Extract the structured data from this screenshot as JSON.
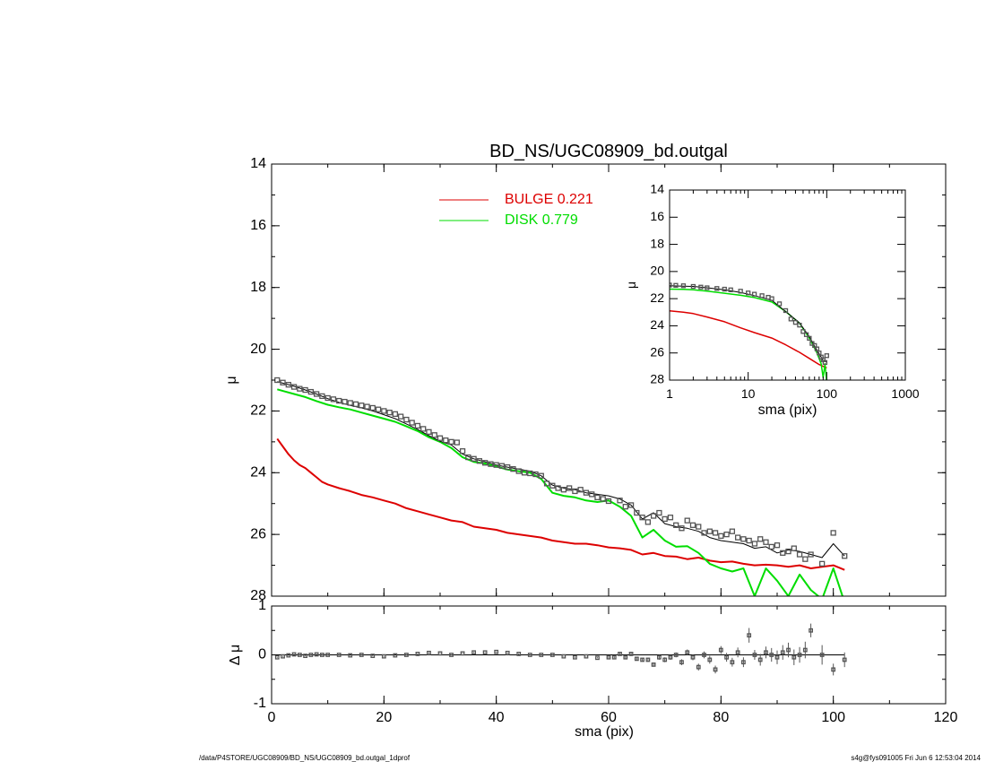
{
  "colors": {
    "bulge": "#dd0000",
    "disk": "#00dd00",
    "model": "#000000",
    "data": "#555555",
    "frame": "#000000"
  },
  "footer": {
    "left": "/data/P4STORE/UGC08909/BD_NS/UGC08909_bd.outgal_1dprof",
    "right": "s4g@fys091005  Fri Jun  6 12:53:04 2014"
  },
  "chart_data": [
    {
      "panel": "main",
      "type": "line",
      "title": "BD_NS/UGC08909_bd.outgal",
      "xlabel": "sma (pix)",
      "ylabel": "μ",
      "xlim": [
        0,
        120
      ],
      "ylim": [
        28,
        14
      ],
      "x_ticks": [
        "0",
        "20",
        "40",
        "60",
        "80",
        "100",
        "120"
      ],
      "y_ticks": [
        "14",
        "16",
        "18",
        "20",
        "22",
        "24",
        "26",
        "28"
      ],
      "legend": [
        {
          "label": "BULGE  0.221",
          "color": "#dd0000"
        },
        {
          "label": "DISK  0.779",
          "color": "#00dd00"
        }
      ],
      "series": [
        {
          "name": "BULGE",
          "color": "#dd0000",
          "x": [
            1,
            2,
            3,
            4,
            5,
            6,
            7,
            8,
            9,
            10,
            12,
            14,
            16,
            18,
            20,
            22,
            24,
            26,
            28,
            30,
            32,
            34,
            36,
            38,
            40,
            42,
            44,
            46,
            48,
            50,
            52,
            54,
            56,
            58,
            60,
            62,
            64,
            66,
            68,
            70,
            72,
            74,
            76,
            78,
            80,
            82,
            84,
            86,
            88,
            90,
            92,
            94,
            96,
            98,
            100,
            102
          ],
          "y": [
            22.9,
            23.15,
            23.4,
            23.6,
            23.75,
            23.85,
            24.0,
            24.15,
            24.3,
            24.38,
            24.5,
            24.6,
            24.72,
            24.8,
            24.9,
            25.0,
            25.15,
            25.25,
            25.35,
            25.45,
            25.55,
            25.6,
            25.75,
            25.8,
            25.85,
            25.95,
            26.0,
            26.05,
            26.1,
            26.2,
            26.25,
            26.3,
            26.3,
            26.35,
            26.42,
            26.45,
            26.5,
            26.65,
            26.6,
            26.7,
            26.72,
            26.8,
            26.75,
            26.85,
            26.9,
            26.88,
            26.95,
            27.0,
            26.98,
            27.0,
            27.05,
            27.0,
            27.1,
            27.05,
            27.0,
            27.15
          ]
        },
        {
          "name": "DISK",
          "color": "#00dd00",
          "x": [
            1,
            2,
            4,
            6,
            8,
            10,
            12,
            14,
            16,
            18,
            20,
            22,
            24,
            26,
            28,
            30,
            32,
            34,
            36,
            38,
            40,
            42,
            44,
            46,
            48,
            50,
            52,
            54,
            56,
            58,
            60,
            62,
            64,
            66,
            68,
            70,
            72,
            74,
            76,
            78,
            80,
            82,
            84,
            86,
            88,
            90,
            92,
            94,
            96,
            98,
            100,
            102
          ],
          "y": [
            21.3,
            21.35,
            21.45,
            21.55,
            21.68,
            21.8,
            21.88,
            21.95,
            22.05,
            22.15,
            22.25,
            22.35,
            22.5,
            22.65,
            22.85,
            23.0,
            23.2,
            23.5,
            23.65,
            23.7,
            23.8,
            23.9,
            23.95,
            24.0,
            24.2,
            24.65,
            24.75,
            24.8,
            24.9,
            24.95,
            24.9,
            25.1,
            25.4,
            26.1,
            25.85,
            26.2,
            26.4,
            26.38,
            26.6,
            26.95,
            27.1,
            27.2,
            27.1,
            28.0,
            27.1,
            27.5,
            28.0,
            27.3,
            27.8,
            28.1,
            27.1,
            28.2
          ]
        },
        {
          "name": "model",
          "color": "#000000",
          "x": [
            1,
            2,
            4,
            6,
            8,
            10,
            12,
            14,
            16,
            18,
            20,
            22,
            24,
            26,
            28,
            30,
            32,
            34,
            36,
            38,
            40,
            42,
            44,
            46,
            48,
            50,
            52,
            54,
            56,
            58,
            60,
            62,
            64,
            66,
            68,
            70,
            72,
            74,
            76,
            78,
            80,
            82,
            84,
            86,
            88,
            90,
            92,
            94,
            96,
            98,
            100,
            102
          ],
          "y": [
            21.05,
            21.1,
            21.2,
            21.32,
            21.45,
            21.6,
            21.72,
            21.82,
            21.9,
            22.0,
            22.12,
            22.25,
            22.42,
            22.6,
            22.8,
            22.98,
            23.1,
            23.4,
            23.55,
            23.65,
            23.75,
            23.82,
            23.88,
            23.95,
            24.1,
            24.4,
            24.5,
            24.55,
            24.65,
            24.7,
            24.75,
            24.85,
            25.05,
            25.5,
            25.3,
            25.65,
            25.75,
            25.8,
            25.9,
            26.1,
            26.2,
            26.25,
            26.3,
            26.45,
            26.4,
            26.6,
            26.5,
            26.55,
            26.65,
            26.75,
            26.3,
            26.7
          ]
        },
        {
          "name": "data",
          "color": "#555555",
          "marker": "square",
          "x": [
            1,
            2,
            3,
            4,
            5,
            6,
            7,
            8,
            9,
            10,
            11,
            12,
            13,
            14,
            15,
            16,
            17,
            18,
            19,
            20,
            21,
            22,
            23,
            24,
            25,
            26,
            27,
            28,
            29,
            30,
            31,
            32,
            33,
            34,
            35,
            36,
            37,
            38,
            39,
            40,
            41,
            42,
            43,
            44,
            45,
            46,
            47,
            48,
            49,
            50,
            51,
            52,
            53,
            54,
            55,
            56,
            57,
            58,
            59,
            60,
            62,
            63,
            64,
            65,
            66,
            67,
            68,
            69,
            70,
            71,
            72,
            73,
            74,
            75,
            76,
            77,
            78,
            79,
            80,
            81,
            82,
            83,
            84,
            85,
            86,
            87,
            88,
            89,
            90,
            91,
            92,
            93,
            94,
            95,
            96,
            98,
            100,
            102
          ],
          "y": [
            21.0,
            21.08,
            21.15,
            21.22,
            21.28,
            21.32,
            21.38,
            21.45,
            21.52,
            21.58,
            21.62,
            21.67,
            21.7,
            21.74,
            21.78,
            21.82,
            21.86,
            21.9,
            21.95,
            22.0,
            22.05,
            22.1,
            22.18,
            22.28,
            22.38,
            22.48,
            22.58,
            22.68,
            22.78,
            22.88,
            22.95,
            23.0,
            23.02,
            23.3,
            23.5,
            23.55,
            23.62,
            23.68,
            23.72,
            23.75,
            23.78,
            23.82,
            23.88,
            23.95,
            24.0,
            24.02,
            24.05,
            24.1,
            24.35,
            24.42,
            24.5,
            24.55,
            24.5,
            24.6,
            24.55,
            24.65,
            24.7,
            24.8,
            24.85,
            24.92,
            24.9,
            25.1,
            25.05,
            25.3,
            25.45,
            25.6,
            25.4,
            25.3,
            25.5,
            25.45,
            25.7,
            25.8,
            25.55,
            25.7,
            25.75,
            25.95,
            25.9,
            25.95,
            26.05,
            26.0,
            25.9,
            26.1,
            26.15,
            26.2,
            26.3,
            26.15,
            26.25,
            26.4,
            26.35,
            26.6,
            26.55,
            26.45,
            26.65,
            26.8,
            26.65,
            26.95,
            25.95,
            26.7
          ]
        }
      ]
    },
    {
      "panel": "inset",
      "type": "line",
      "xlabel": "sma (pix)",
      "ylabel": "μ",
      "xscale": "log",
      "xlim": [
        1,
        1000
      ],
      "ylim": [
        28,
        14
      ],
      "x_ticks": [
        "1",
        "10",
        "100",
        "1000"
      ],
      "y_ticks": [
        "14",
        "16",
        "18",
        "20",
        "22",
        "24",
        "26",
        "28"
      ],
      "series": [
        {
          "name": "BULGE",
          "color": "#dd0000",
          "x": [
            1,
            1.5,
            2,
            3,
            5,
            8,
            12,
            20,
            30,
            45,
            60,
            80,
            100
          ],
          "y": [
            22.9,
            23.0,
            23.1,
            23.35,
            23.7,
            24.15,
            24.5,
            24.9,
            25.4,
            25.95,
            26.4,
            26.85,
            27.1
          ]
        },
        {
          "name": "DISK",
          "color": "#00dd00",
          "x": [
            1,
            1.5,
            2,
            3,
            5,
            8,
            12,
            20,
            30,
            45,
            60,
            75,
            85,
            90,
            95,
            100
          ],
          "y": [
            21.3,
            21.32,
            21.35,
            21.45,
            21.6,
            21.75,
            21.92,
            22.25,
            22.95,
            23.8,
            24.9,
            26.0,
            26.8,
            27.8,
            26.8,
            28.2
          ]
        },
        {
          "name": "model",
          "color": "#000000",
          "x": [
            1,
            1.5,
            2,
            3,
            5,
            8,
            12,
            20,
            30,
            45,
            60,
            75,
            85,
            90,
            95,
            100
          ],
          "y": [
            21.05,
            21.08,
            21.1,
            21.2,
            21.35,
            21.55,
            21.78,
            22.12,
            22.95,
            23.78,
            24.8,
            25.8,
            26.3,
            26.6,
            26.5,
            26.7
          ]
        },
        {
          "name": "data",
          "color": "#555555",
          "marker": "square",
          "x": [
            1,
            1.2,
            1.5,
            2,
            2.5,
            3,
            4,
            5,
            6,
            8,
            10,
            12,
            15,
            18,
            20,
            25,
            30,
            35,
            40,
            45,
            50,
            55,
            60,
            65,
            70,
            75,
            80,
            85,
            90,
            95,
            100
          ],
          "y": [
            21.0,
            21.02,
            21.05,
            21.1,
            21.15,
            21.2,
            21.25,
            21.3,
            21.35,
            21.45,
            21.58,
            21.67,
            21.78,
            21.9,
            22.0,
            22.38,
            22.88,
            23.5,
            23.75,
            23.95,
            24.42,
            24.65,
            24.92,
            25.3,
            25.45,
            25.7,
            26.0,
            26.3,
            26.5,
            26.7,
            26.2
          ]
        }
      ]
    },
    {
      "panel": "residual",
      "type": "scatter",
      "xlabel": "sma (pix)",
      "ylabel": "Δ μ",
      "xlim": [
        0,
        120
      ],
      "ylim": [
        -1,
        1
      ],
      "x_ticks": [
        "0",
        "20",
        "40",
        "60",
        "80",
        "100",
        "120"
      ],
      "y_ticks": [
        "-1",
        "0",
        "1"
      ],
      "reference_line": 0,
      "series": [
        {
          "name": "residual",
          "color": "#555555",
          "marker": "square",
          "x": [
            1,
            2,
            3,
            4,
            5,
            6,
            7,
            8,
            9,
            10,
            12,
            14,
            16,
            18,
            20,
            22,
            24,
            26,
            28,
            30,
            32,
            34,
            36,
            38,
            40,
            42,
            44,
            46,
            48,
            50,
            52,
            54,
            56,
            58,
            60,
            61,
            62,
            63,
            64,
            65,
            66,
            67,
            68,
            69,
            70,
            71,
            72,
            73,
            74,
            75,
            76,
            77,
            78,
            79,
            80,
            81,
            82,
            83,
            84,
            85,
            86,
            87,
            88,
            89,
            90,
            91,
            92,
            93,
            94,
            95,
            96,
            98,
            100,
            102
          ],
          "y": [
            -0.05,
            -0.03,
            -0.01,
            0.01,
            0.0,
            -0.02,
            0.0,
            0.01,
            0.0,
            0.0,
            0.0,
            -0.01,
            0.0,
            -0.02,
            -0.03,
            -0.01,
            0.0,
            0.02,
            0.04,
            0.03,
            0.0,
            0.03,
            0.05,
            0.05,
            0.06,
            0.04,
            0.02,
            0.0,
            0.0,
            0.0,
            -0.03,
            -0.05,
            -0.03,
            -0.06,
            -0.05,
            -0.05,
            0.02,
            -0.05,
            0.02,
            -0.08,
            -0.1,
            -0.1,
            -0.2,
            -0.05,
            -0.1,
            -0.05,
            0.0,
            -0.15,
            0.05,
            -0.05,
            -0.25,
            0.0,
            -0.1,
            -0.3,
            0.1,
            -0.05,
            -0.15,
            0.05,
            -0.15,
            0.4,
            0.0,
            -0.1,
            0.05,
            0.0,
            -0.05,
            0.05,
            0.1,
            -0.05,
            0.0,
            0.1,
            0.5,
            0.0,
            -0.3,
            -0.1
          ],
          "error": [
            0.01,
            0.01,
            0.01,
            0.01,
            0.01,
            0.01,
            0.01,
            0.01,
            0.01,
            0.01,
            0.01,
            0.01,
            0.01,
            0.01,
            0.01,
            0.01,
            0.01,
            0.01,
            0.01,
            0.01,
            0.01,
            0.01,
            0.01,
            0.01,
            0.01,
            0.01,
            0.01,
            0.01,
            0.01,
            0.01,
            0.01,
            0.01,
            0.01,
            0.01,
            0.02,
            0.02,
            0.02,
            0.03,
            0.03,
            0.03,
            0.04,
            0.04,
            0.04,
            0.05,
            0.05,
            0.05,
            0.05,
            0.06,
            0.06,
            0.06,
            0.07,
            0.07,
            0.08,
            0.08,
            0.08,
            0.09,
            0.09,
            0.1,
            0.1,
            0.15,
            0.1,
            0.12,
            0.12,
            0.14,
            0.14,
            0.15,
            0.15,
            0.16,
            0.16,
            0.17,
            0.14,
            0.2,
            0.12,
            0.15
          ]
        }
      ]
    }
  ]
}
